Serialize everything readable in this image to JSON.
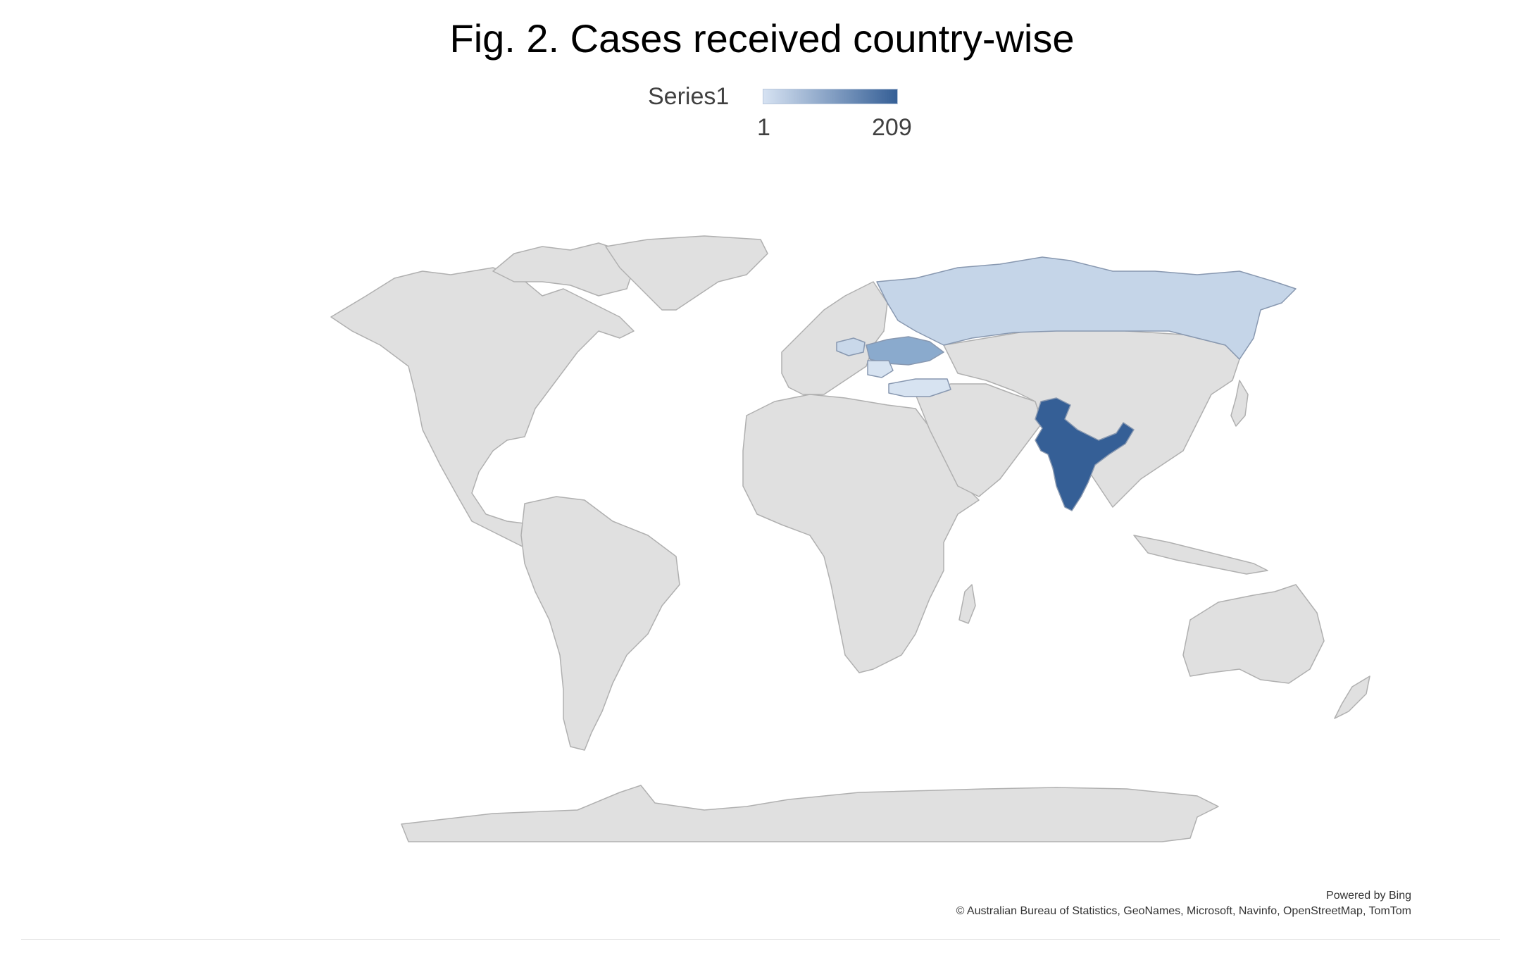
{
  "title": "Fig. 2. Cases received country-wise",
  "legend": {
    "series_name": "Series1",
    "min_label": "1",
    "max_label": "209",
    "color_low": "#d6e2f2",
    "color_high": "#355f96"
  },
  "map": {
    "land_color": "#e0e0e0",
    "border_color": "#b0b0b0",
    "highlighted_countries": [
      {
        "name": "India",
        "level": "max",
        "color": "#355f96"
      },
      {
        "name": "Ukraine",
        "level": "mid",
        "color": "#8aaacd"
      },
      {
        "name": "Russia",
        "level": "low",
        "color": "#c5d5e8"
      },
      {
        "name": "Turkey",
        "level": "low",
        "color": "#d7e3f1"
      },
      {
        "name": "Poland",
        "level": "low",
        "color": "#c9d8ea"
      },
      {
        "name": "Romania",
        "level": "low",
        "color": "#d7e3f1"
      }
    ]
  },
  "credits": {
    "line1": "Powered by Bing",
    "line2": "© Australian Bureau of Statistics, GeoNames, Microsoft, Navinfo, OpenStreetMap, TomTom"
  }
}
